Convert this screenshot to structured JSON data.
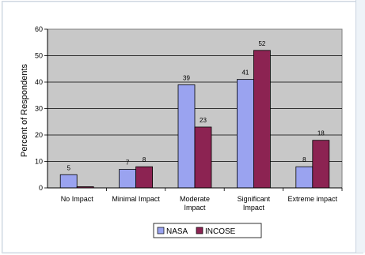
{
  "chart_data": {
    "type": "bar",
    "title": "",
    "xlabel": "",
    "ylabel": "Percent of Respondents",
    "ylim": [
      0,
      60
    ],
    "yticks": [
      0,
      10,
      20,
      30,
      40,
      50,
      60
    ],
    "grid": true,
    "legend_position": "bottom",
    "categories": [
      [
        "No Impact"
      ],
      [
        "Minimal Impact"
      ],
      [
        "Moderate",
        "Impact"
      ],
      [
        "Significant",
        "Impact"
      ],
      [
        "Extreme impact"
      ]
    ],
    "series": [
      {
        "name": "NASA",
        "values": [
          5,
          7,
          39,
          41,
          8
        ],
        "color": "#9aa3f0"
      },
      {
        "name": "INCOSE",
        "values": [
          0,
          8,
          23,
          52,
          18
        ],
        "color": "#8c2352"
      }
    ],
    "data_labels": {
      "NASA": [
        "5",
        "7",
        "39",
        "41",
        "8"
      ],
      "INCOSE": [
        "",
        "8",
        "23",
        "52",
        "18"
      ]
    },
    "plot_background": "#c8c8c8"
  }
}
